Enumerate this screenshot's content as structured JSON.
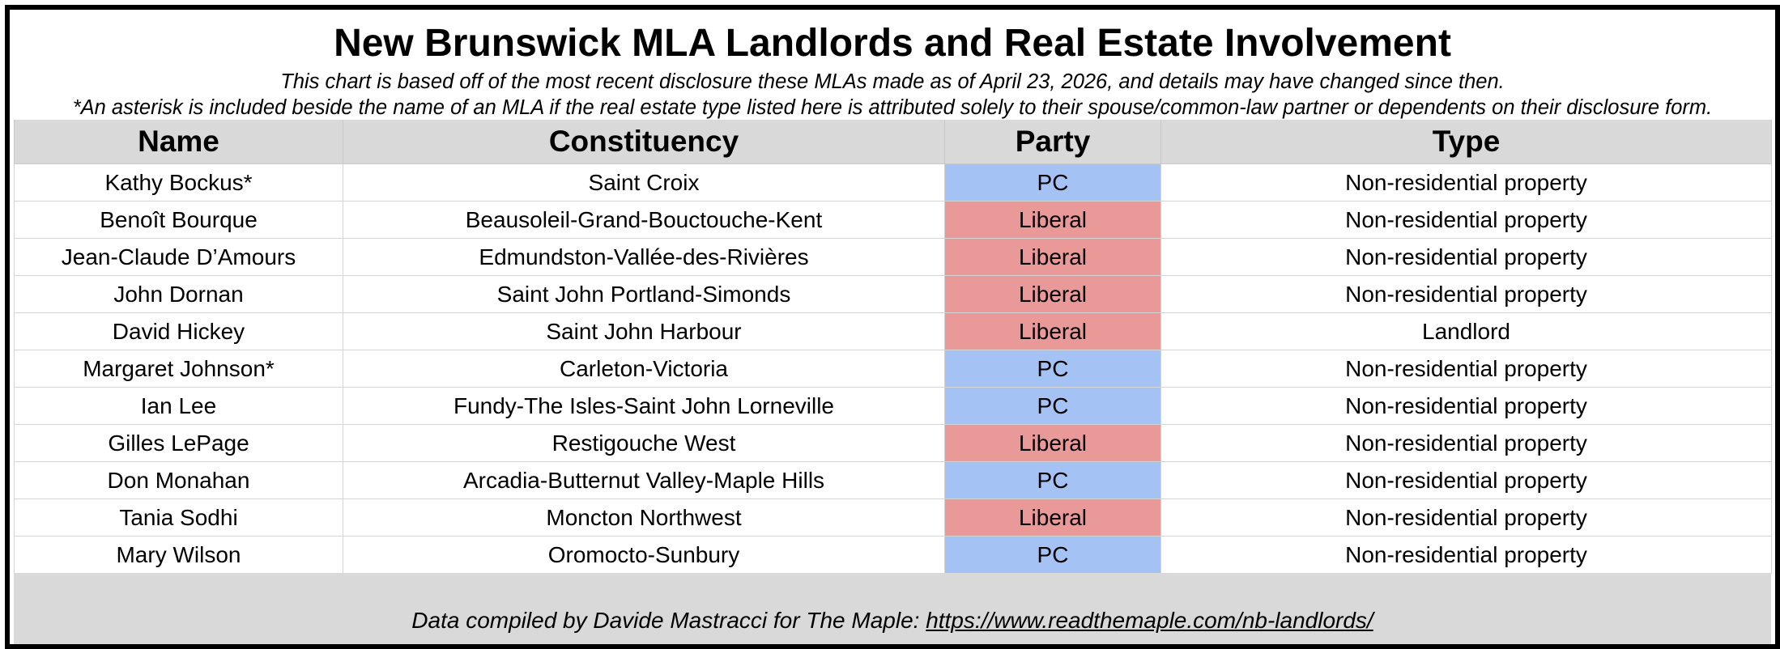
{
  "title": "New Brunswick MLA Landlords and Real Estate Involvement",
  "subtitle_1": "This chart is based off of the most recent disclosure these MLAs made as of April 23, 2026, and details may have changed since then.",
  "subtitle_2": "*An asterisk is included beside the name of an MLA if the real estate type listed here is attributed solely to their spouse/common-law partner or dependents on their disclosure form.",
  "table": {
    "headers": [
      "Name",
      "Constituency",
      "Party",
      "Type"
    ],
    "rows": [
      [
        "Kathy Bockus*",
        "Saint Croix",
        "PC",
        "Non-residential property"
      ],
      [
        "Benoît Bourque",
        "Beausoleil-Grand-Bouctouche-Kent",
        "Liberal",
        "Non-residential property"
      ],
      [
        "Jean-Claude D’Amours",
        "Edmundston-Vallée-des-Rivières",
        "Liberal",
        "Non-residential property"
      ],
      [
        "John Dornan",
        "Saint John Portland-Simonds",
        "Liberal",
        "Non-residential property"
      ],
      [
        "David Hickey",
        "Saint John Harbour",
        "Liberal",
        "Landlord"
      ],
      [
        "Margaret Johnson*",
        "Carleton-Victoria",
        "PC",
        "Non-residential property"
      ],
      [
        "Ian Lee",
        "Fundy-The Isles-Saint John Lorneville",
        "PC",
        "Non-residential property"
      ],
      [
        "Gilles LePage",
        "Restigouche West",
        "Liberal",
        "Non-residential property"
      ],
      [
        "Don Monahan",
        "Arcadia-Butternut Valley-Maple Hills",
        "PC",
        "Non-residential property"
      ],
      [
        "Tania Sodhi",
        "Moncton Northwest",
        "Liberal",
        "Non-residential property"
      ],
      [
        "Mary Wilson",
        "Oromocto-Sunbury",
        "PC",
        "Non-residential property"
      ]
    ]
  },
  "party_colors": {
    "PC": "#a4c2f4",
    "Liberal": "#ea9999"
  },
  "footer": {
    "text": "Data compiled by Davide Mastracci for The Maple: ",
    "link": "https://www.readthemaple.com/nb-landlords/"
  }
}
